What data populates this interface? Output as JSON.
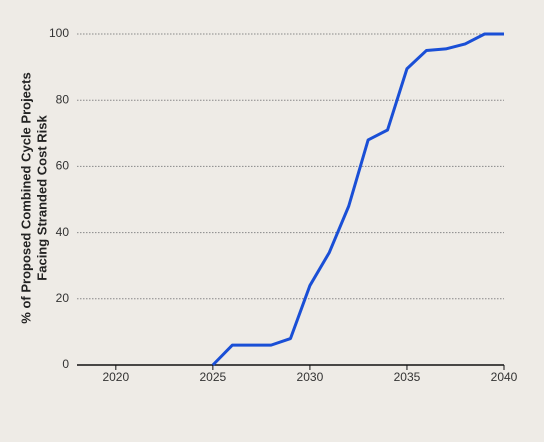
{
  "chart_data": {
    "type": "line",
    "ylabel": [
      "% of Proposed Combined Cycle Projects",
      "Facing Stranded Cost Risk"
    ],
    "x": [
      2025,
      2026,
      2027,
      2028,
      2029,
      2030,
      2031,
      2032,
      2033,
      2034,
      2035,
      2036,
      2037,
      2038,
      2039,
      2040
    ],
    "series": [
      {
        "color": "#1a4fd6",
        "values": [
          0,
          6,
          6,
          6,
          8,
          24,
          34,
          48,
          68,
          71,
          89.5,
          95,
          95.5,
          97,
          100,
          100
        ]
      }
    ],
    "xlim": [
      2018,
      2040
    ],
    "xticks": [
      2020,
      2025,
      2030,
      2035,
      2040
    ],
    "ylim": [
      0,
      100
    ],
    "yticks": [
      0,
      20,
      40,
      60,
      80,
      100
    ],
    "grid": true
  }
}
